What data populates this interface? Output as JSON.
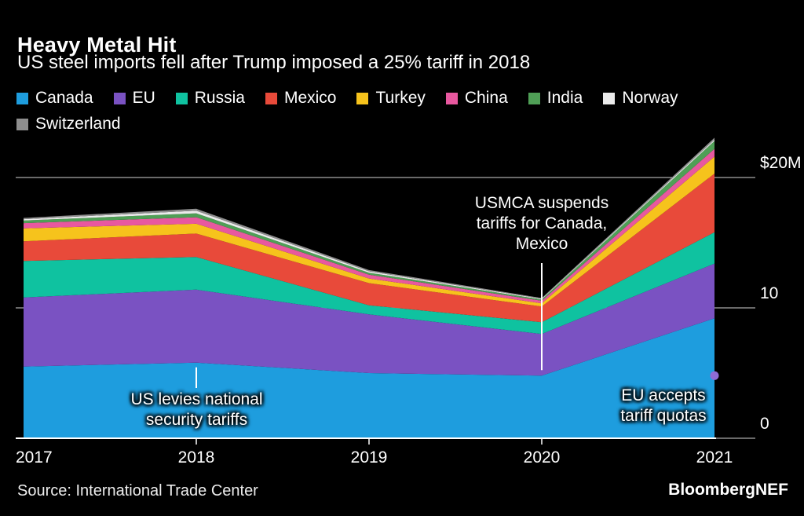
{
  "chart_data": {
    "type": "area",
    "stacked": true,
    "title": "Heavy Metal Hit",
    "subtitle": "US steel imports fell after Trump imposed a 25% tariff in 2018",
    "unit": "$M",
    "x": [
      2017,
      2018,
      2019,
      2020,
      2021
    ],
    "series": [
      {
        "name": "Canada",
        "color": "#1e9dde",
        "values": [
          5.5,
          5.8,
          5.0,
          4.8,
          9.2
        ]
      },
      {
        "name": "EU",
        "color": "#7a52c2",
        "values": [
          5.3,
          5.6,
          4.5,
          3.2,
          4.2
        ]
      },
      {
        "name": "Russia",
        "color": "#0fc2a0",
        "values": [
          2.8,
          2.5,
          0.7,
          0.9,
          2.4
        ]
      },
      {
        "name": "Mexico",
        "color": "#e84a3a",
        "values": [
          1.5,
          1.8,
          1.7,
          1.2,
          4.5
        ]
      },
      {
        "name": "Turkey",
        "color": "#f6c31c",
        "values": [
          1.0,
          0.75,
          0.35,
          0.25,
          1.3
        ]
      },
      {
        "name": "China",
        "color": "#e8589f",
        "values": [
          0.4,
          0.5,
          0.3,
          0.2,
          0.6
        ]
      },
      {
        "name": "India",
        "color": "#4f9f56",
        "values": [
          0.2,
          0.3,
          0.15,
          0.1,
          0.6
        ]
      },
      {
        "name": "Norway",
        "color": "#ebebeb",
        "values": [
          0.1,
          0.2,
          0.1,
          0.05,
          0.1
        ]
      },
      {
        "name": "Switzerland",
        "color": "#8e8e8e",
        "values": [
          0.1,
          0.15,
          0.1,
          0.05,
          0.15
        ]
      }
    ],
    "ylim": [
      0,
      20
    ],
    "yticks": [
      {
        "value": 0,
        "label": "0"
      },
      {
        "value": 10,
        "label": "10"
      },
      {
        "value": 20,
        "label": "$20M"
      }
    ],
    "grid": "horizontal",
    "legend_position": "top",
    "annotations": [
      {
        "x": 2018,
        "text": "US levies national\nsecurity tariffs"
      },
      {
        "x": 2020,
        "text": "USMCA suspends\ntariffs for Canada,\nMexico"
      },
      {
        "x": 2021,
        "text": "EU accepts\ntariff quotas"
      }
    ]
  },
  "footer": {
    "source": "Source: International Trade Center",
    "brand": "BloombergNEF"
  }
}
